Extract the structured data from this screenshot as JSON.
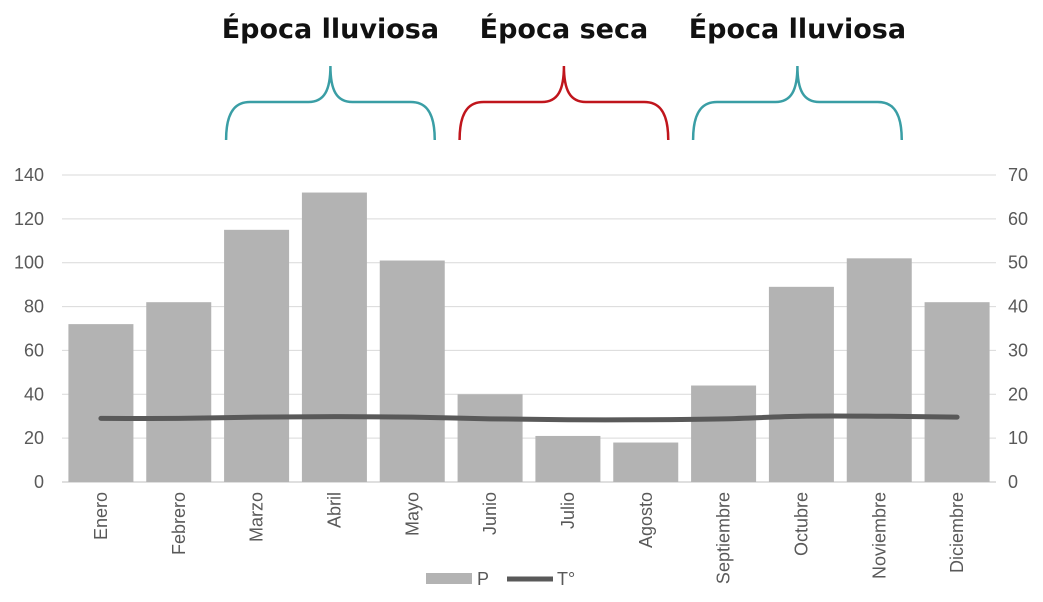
{
  "chart_data": {
    "type": "bar",
    "categories": [
      "Enero",
      "Febrero",
      "Marzo",
      "Abril",
      "Mayo",
      "Junio",
      "Julio",
      "Agosto",
      "Septiembre",
      "Octubre",
      "Noviembre",
      "Diciembre"
    ],
    "series": [
      {
        "name": "P",
        "type": "bar",
        "axis": "left",
        "color": "#b3b3b3",
        "values": [
          72,
          82,
          115,
          132,
          101,
          40,
          21,
          18,
          44,
          89,
          102,
          82
        ]
      },
      {
        "name": "T°",
        "type": "line",
        "axis": "right",
        "color": "#595959",
        "values": [
          14.5,
          14.5,
          14.8,
          14.9,
          14.8,
          14.4,
          14.2,
          14.2,
          14.4,
          15.0,
          15.0,
          14.8
        ]
      }
    ],
    "ylim_left": [
      0,
      140
    ],
    "yticks_left": [
      0,
      20,
      40,
      60,
      80,
      100,
      120,
      140
    ],
    "ylim_right": [
      0,
      70
    ],
    "yticks_right": [
      0,
      10,
      20,
      30,
      40,
      50,
      60,
      70
    ],
    "grid": true,
    "legend": "bottom",
    "annotations": [
      {
        "label": "Época lluviosa",
        "from": "Marzo",
        "to": "Mayo",
        "color": "#3a9ea5"
      },
      {
        "label": "Época seca",
        "from": "Junio",
        "to": "Agosto",
        "color": "#c0151c"
      },
      {
        "label": "Época lluviosa",
        "from": "Septiembre",
        "to": "Noviembre",
        "color": "#3a9ea5"
      }
    ]
  }
}
